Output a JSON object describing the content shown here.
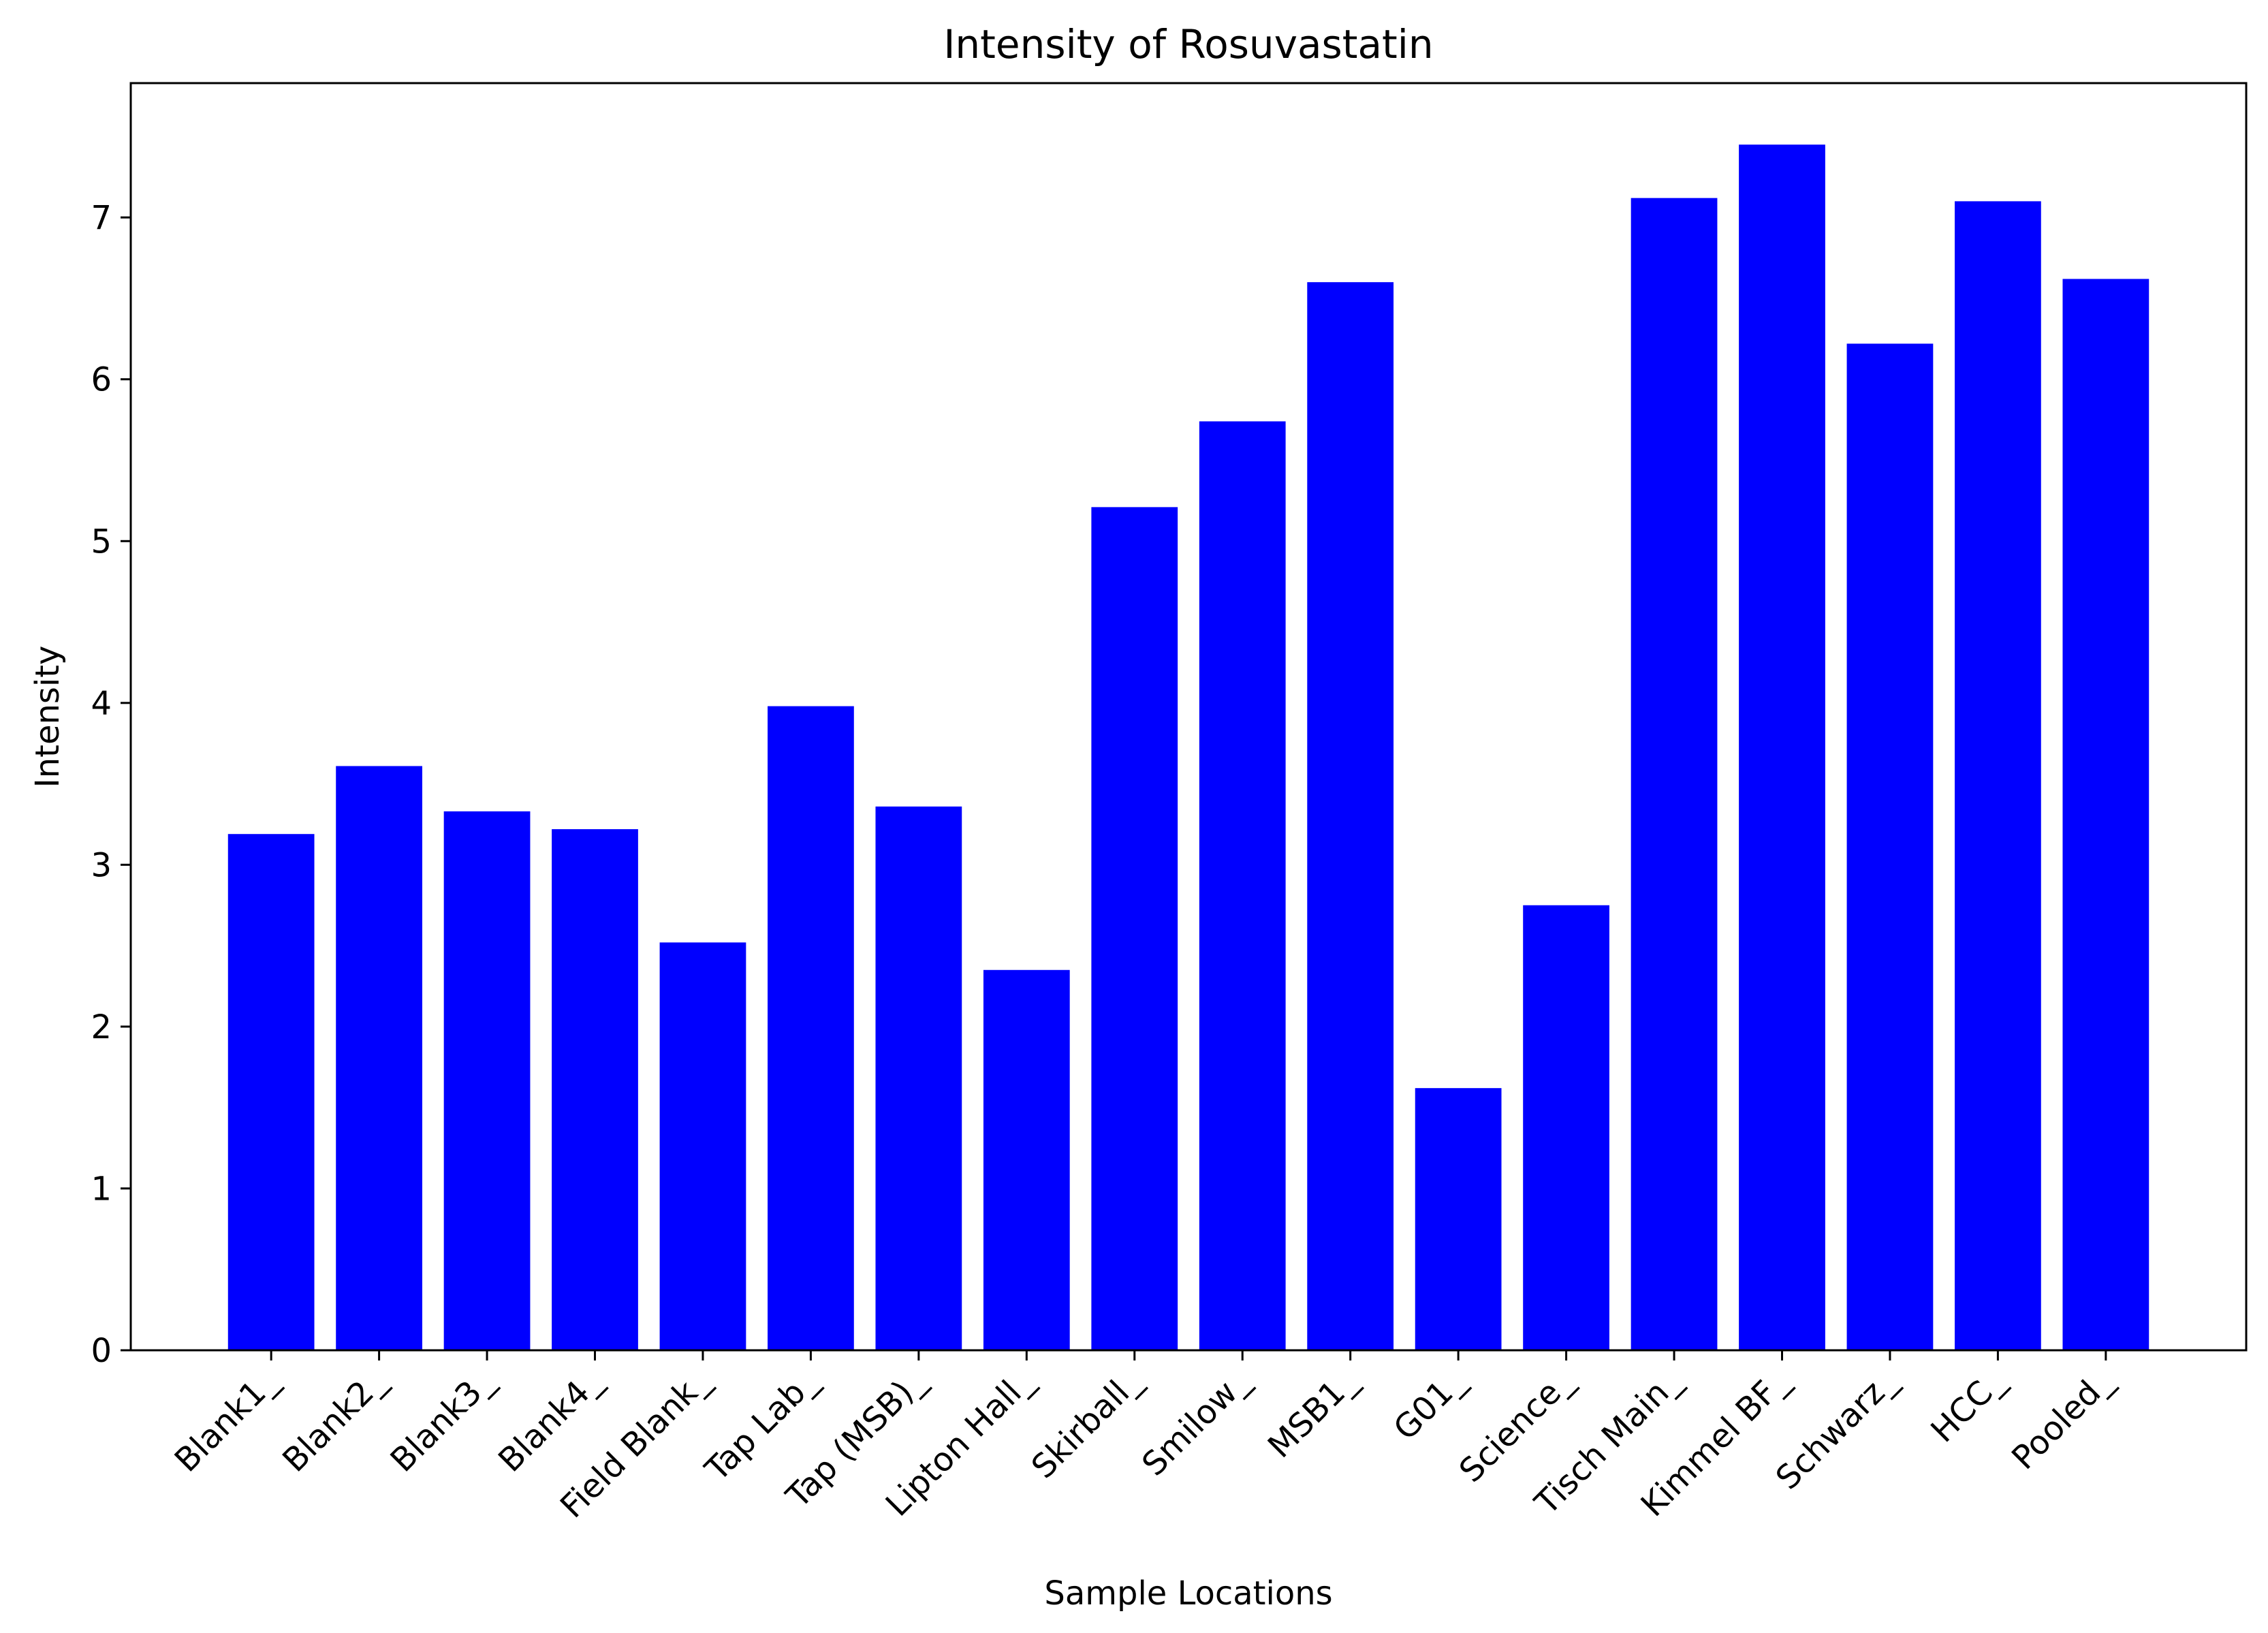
{
  "chart_data": {
    "type": "bar",
    "title": "Intensity of Rosuvastatin",
    "xlabel": "Sample Locations",
    "ylabel": "Intensity",
    "categories": [
      "Blank1_",
      "Blank2_",
      "Blank3_",
      "Blank4_",
      "Field Blank_",
      "Tap Lab_",
      "Tap (MSB)_",
      "Lipton Hall_",
      "Skirball_",
      "Smilow_",
      "MSB1_",
      "G01_",
      "Science_",
      "Tisch Main_",
      "Kimmel BF_",
      "Schwarz_",
      "HCC_",
      "Pooled_"
    ],
    "values": [
      3.19,
      3.61,
      3.33,
      3.22,
      2.52,
      3.98,
      3.36,
      2.35,
      5.21,
      5.74,
      6.6,
      1.62,
      2.75,
      7.12,
      7.45,
      6.22,
      7.1,
      6.62
    ],
    "ylim": [
      0,
      7.83
    ],
    "yticks": [
      0,
      1,
      2,
      3,
      4,
      5,
      6,
      7
    ],
    "bar_color": "#0000ff",
    "grid": false,
    "legend": "none"
  }
}
